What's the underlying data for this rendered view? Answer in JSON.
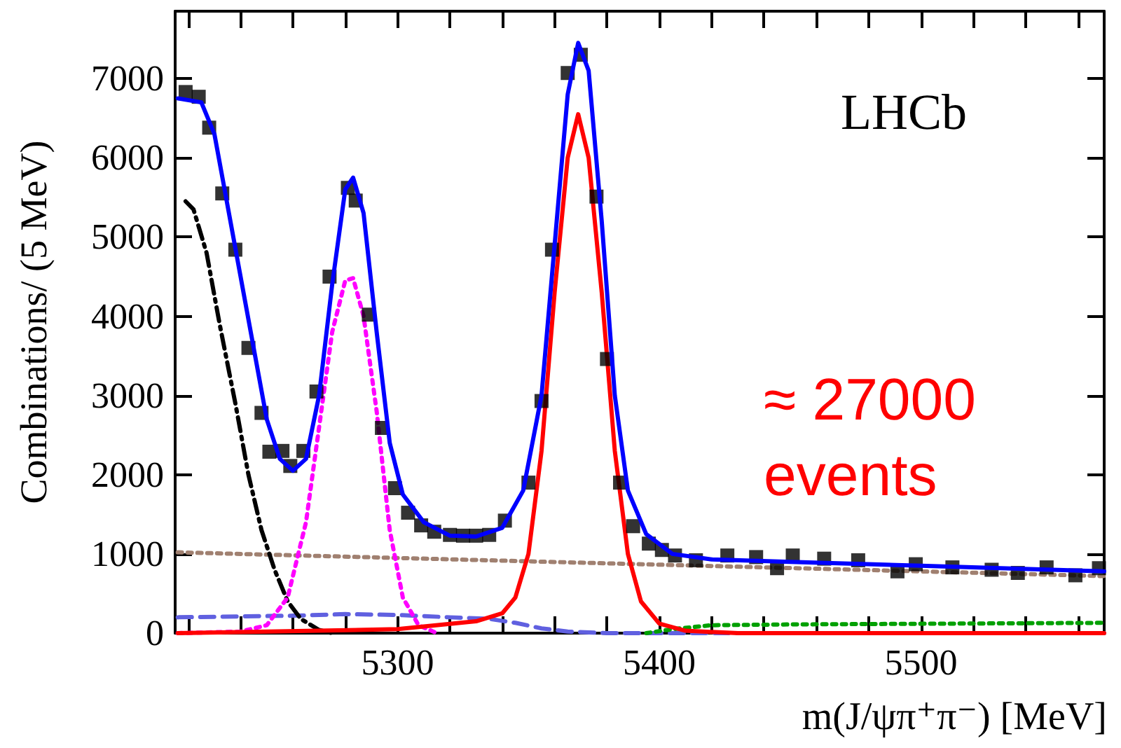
{
  "chart_data": {
    "type": "scatter",
    "xlabel": "m(J/ψπ⁺π⁻) [MeV]",
    "ylabel": "Combinations/ (5 MeV)",
    "annotations": [
      "LHCb",
      "≈ 27000 events"
    ],
    "xlim": [
      5215,
      5570
    ],
    "ylim": [
      0,
      7850
    ],
    "xticks": [
      {
        "value": 5220,
        "label": null
      },
      {
        "value": 5240,
        "label": null
      },
      {
        "value": 5260,
        "label": null
      },
      {
        "value": 5280,
        "label": null
      },
      5300,
      {
        "value": 5320,
        "label": null
      },
      {
        "value": 5340,
        "label": null
      },
      {
        "value": 5360,
        "label": null
      },
      {
        "value": 5380,
        "label": null
      },
      5400,
      {
        "value": 5420,
        "label": null
      },
      {
        "value": 5440,
        "label": null
      },
      {
        "value": 5460,
        "label": null
      },
      {
        "value": 5480,
        "label": null
      },
      5500,
      {
        "value": 5520,
        "label": null
      },
      {
        "value": 5540,
        "label": null
      },
      {
        "value": 5560,
        "label": null
      }
    ],
    "yticks": [
      0,
      1000,
      2000,
      3000,
      4000,
      5000,
      6000,
      7000
    ],
    "grid": false,
    "series": [
      {
        "type": "line",
        "color": "#a08070",
        "line_style": "dotted",
        "marker": "none",
        "x": [
          5216,
          5570
        ],
        "values": [
          1020,
          720
        ]
      },
      {
        "type": "line",
        "color": "#6060e0",
        "line_style": "dashed",
        "marker": "none",
        "x": [
          5216,
          5260,
          5280,
          5300,
          5320,
          5335,
          5345,
          5355,
          5365,
          5380,
          5570
        ],
        "values": [
          200,
          220,
          240,
          230,
          200,
          180,
          130,
          60,
          20,
          0,
          0
        ]
      },
      {
        "type": "line",
        "color": "#00a000",
        "line_style": "dotted",
        "marker": "none",
        "x": [
          5395,
          5405,
          5420,
          5450,
          5570
        ],
        "values": [
          0,
          50,
          100,
          110,
          130
        ]
      },
      {
        "type": "line",
        "color": "#000000",
        "line_style": "dashdot",
        "marker": "none",
        "x": [
          5219,
          5222,
          5227,
          5232,
          5238,
          5243,
          5248,
          5253,
          5258,
          5263,
          5270,
          5275
        ],
        "values": [
          5450,
          5350,
          4800,
          3900,
          2900,
          2000,
          1300,
          800,
          400,
          180,
          40,
          0
        ]
      },
      {
        "type": "line",
        "color": "#ff00ff",
        "line_style": "dotted",
        "marker": "none",
        "x": [
          5216,
          5240,
          5250,
          5258,
          5265,
          5270,
          5275,
          5280,
          5283,
          5287,
          5292,
          5297,
          5302,
          5308,
          5315
        ],
        "values": [
          0,
          20,
          100,
          450,
          1400,
          2600,
          3800,
          4450,
          4480,
          4000,
          2800,
          1300,
          450,
          100,
          0
        ]
      },
      {
        "type": "line",
        "color": "#ff0000",
        "line_style": "solid",
        "marker": "none",
        "x": [
          5216,
          5300,
          5330,
          5340,
          5345,
          5350,
          5355,
          5360,
          5365,
          5369,
          5373,
          5378,
          5383,
          5388,
          5393,
          5400,
          5410,
          5430,
          5570
        ],
        "values": [
          0,
          50,
          150,
          250,
          450,
          1000,
          2300,
          4300,
          6000,
          6550,
          6000,
          4300,
          2300,
          1000,
          400,
          120,
          30,
          0,
          0
        ]
      },
      {
        "color": "#000000",
        "marker": "square",
        "x": [
          5219,
          5224,
          5228,
          5233,
          5238,
          5243,
          5248,
          5251,
          5256,
          5259,
          5264,
          5269,
          5274,
          5281,
          5284,
          5289,
          5294,
          5299,
          5304,
          5309,
          5314,
          5320,
          5325,
          5330,
          5335,
          5341,
          5350,
          5355,
          5359,
          5365,
          5370,
          5376,
          5380,
          5385,
          5390,
          5396,
          5401,
          5406,
          5414,
          5426,
          5437,
          5445,
          5451,
          5463,
          5476,
          5491,
          5498,
          5512,
          5527,
          5537,
          5548,
          5559,
          5568
        ],
        "values": [
          6830,
          6770,
          6380,
          5550,
          4840,
          3600,
          2780,
          2290,
          2300,
          2110,
          2300,
          3050,
          4500,
          5620,
          5460,
          4020,
          2590,
          1830,
          1520,
          1360,
          1280,
          1240,
          1230,
          1230,
          1240,
          1420,
          1900,
          2930,
          4840,
          7070,
          7300,
          5510,
          3460,
          1900,
          1350,
          1130,
          1050,
          980,
          920,
          980,
          960,
          820,
          980,
          940,
          920,
          780,
          870,
          830,
          800,
          760,
          830,
          730,
          820
        ]
      },
      {
        "type": "line",
        "color": "#0000ff",
        "line_style": "solid",
        "marker": "none",
        "x": [
          5216,
          5225,
          5230,
          5240,
          5250,
          5255,
          5260,
          5265,
          5270,
          5275,
          5280,
          5283,
          5287,
          5292,
          5297,
          5302,
          5310,
          5320,
          5330,
          5340,
          5348,
          5355,
          5360,
          5365,
          5369,
          5373,
          5378,
          5383,
          5388,
          5395,
          5405,
          5420,
          5450,
          5500,
          5570
        ],
        "values": [
          6750,
          6700,
          6300,
          4500,
          2700,
          2200,
          2050,
          2200,
          3000,
          4400,
          5600,
          5750,
          5300,
          3800,
          2400,
          1750,
          1400,
          1230,
          1220,
          1330,
          1800,
          3000,
          4900,
          6800,
          7450,
          7100,
          5200,
          3000,
          1800,
          1250,
          1000,
          930,
          900,
          850,
          780
        ]
      }
    ]
  }
}
